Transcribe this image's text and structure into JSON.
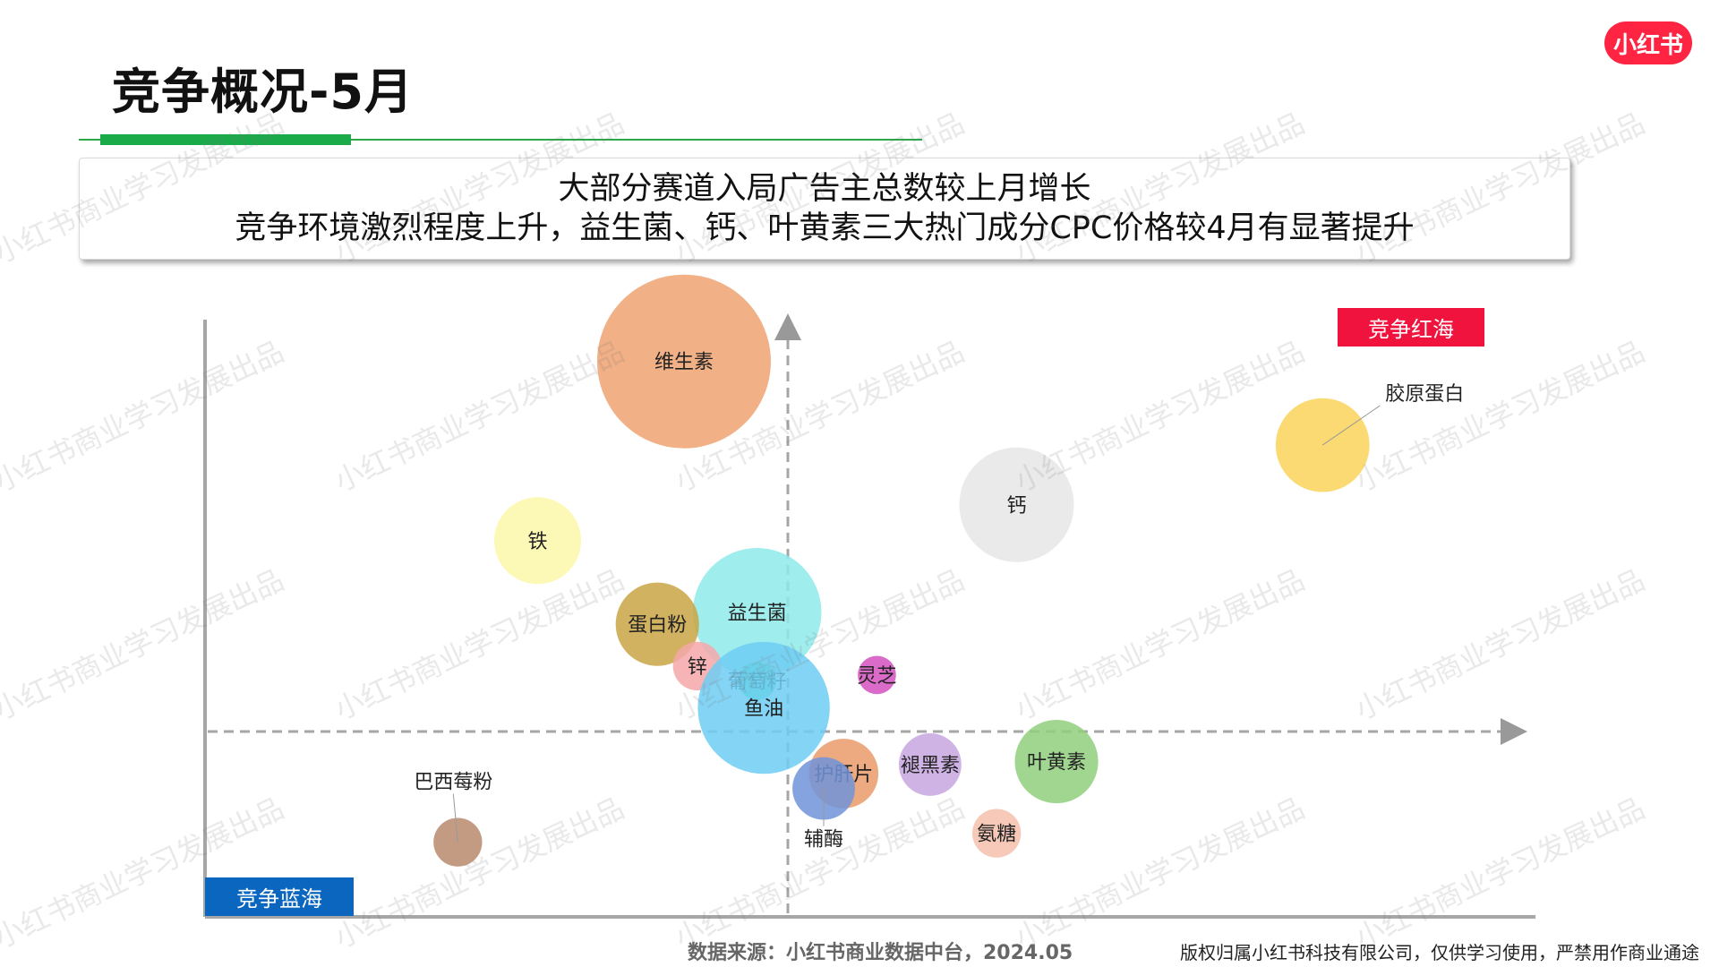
{
  "page": {
    "title": "竞争概况-5月",
    "logo_text": "小红书",
    "summary_line1": "大部分赛道入局广告主总数较上月增长",
    "summary_line2": "竞争环境激烈程度上升，益生菌、钙、叶黄素三大热门成分CPC价格较4月有显著提升",
    "tag_red_sea": "竞争红海",
    "tag_blue_sea": "竞争蓝海",
    "source": "数据来源：小红书商业数据中台，2024.05",
    "copyright": "版权归属小红书科技有限公司，仅供学习使用，严禁用作商业通途",
    "watermark": "小红书商业学习发展出品"
  },
  "chart_data": {
    "type": "bubble",
    "xlim": [
      0,
      100
    ],
    "ylim": [
      0,
      100
    ],
    "series": [
      {
        "label": "维生素",
        "x": 36,
        "y": 93,
        "size": 100,
        "color": "#eea271"
      },
      {
        "label": "铁",
        "x": 25,
        "y": 63,
        "size": 50,
        "color": "#fcf7a8"
      },
      {
        "label": "益生菌",
        "x": 41.5,
        "y": 51,
        "size": 74,
        "color": "#8eeaea"
      },
      {
        "label": "蛋白粉",
        "x": 34,
        "y": 49,
        "size": 48,
        "color": "#c9a445"
      },
      {
        "label": "锌",
        "x": 37,
        "y": 42,
        "size": 28,
        "color": "#f6a7a9"
      },
      {
        "label": "葡萄籽",
        "x": 41.5,
        "y": 39.5,
        "size": 22,
        "color": "#41e3a4"
      },
      {
        "label": "鱼油",
        "x": 42,
        "y": 35,
        "size": 76,
        "color": "#6fcdf3"
      },
      {
        "label": "灵芝",
        "x": 50.5,
        "y": 40.5,
        "size": 22,
        "color": "#d451be"
      },
      {
        "label": "钙",
        "x": 61,
        "y": 69,
        "size": 66,
        "color": "#e6e6e6"
      },
      {
        "label": "胶原蛋白",
        "x": 84,
        "y": 79,
        "size": 54,
        "color": "#fbd45a"
      },
      {
        "label": "叶黄素",
        "x": 64,
        "y": 26,
        "size": 48,
        "color": "#8fcf7d"
      },
      {
        "label": "褪黑素",
        "x": 54.5,
        "y": 25.5,
        "size": 36,
        "color": "#c8a6e0"
      },
      {
        "label": "氨糖",
        "x": 59.5,
        "y": 14,
        "size": 28,
        "color": "#f4bfac"
      },
      {
        "label": "护肝片",
        "x": 48,
        "y": 24,
        "size": 40,
        "color": "#ea9a68"
      },
      {
        "label": "辅酶",
        "x": 46.5,
        "y": 21.5,
        "size": 36,
        "color": "#7094d9"
      },
      {
        "label": "巴西莓粉",
        "x": 19,
        "y": 12.5,
        "size": 28,
        "color": "#b88a6c"
      }
    ]
  }
}
